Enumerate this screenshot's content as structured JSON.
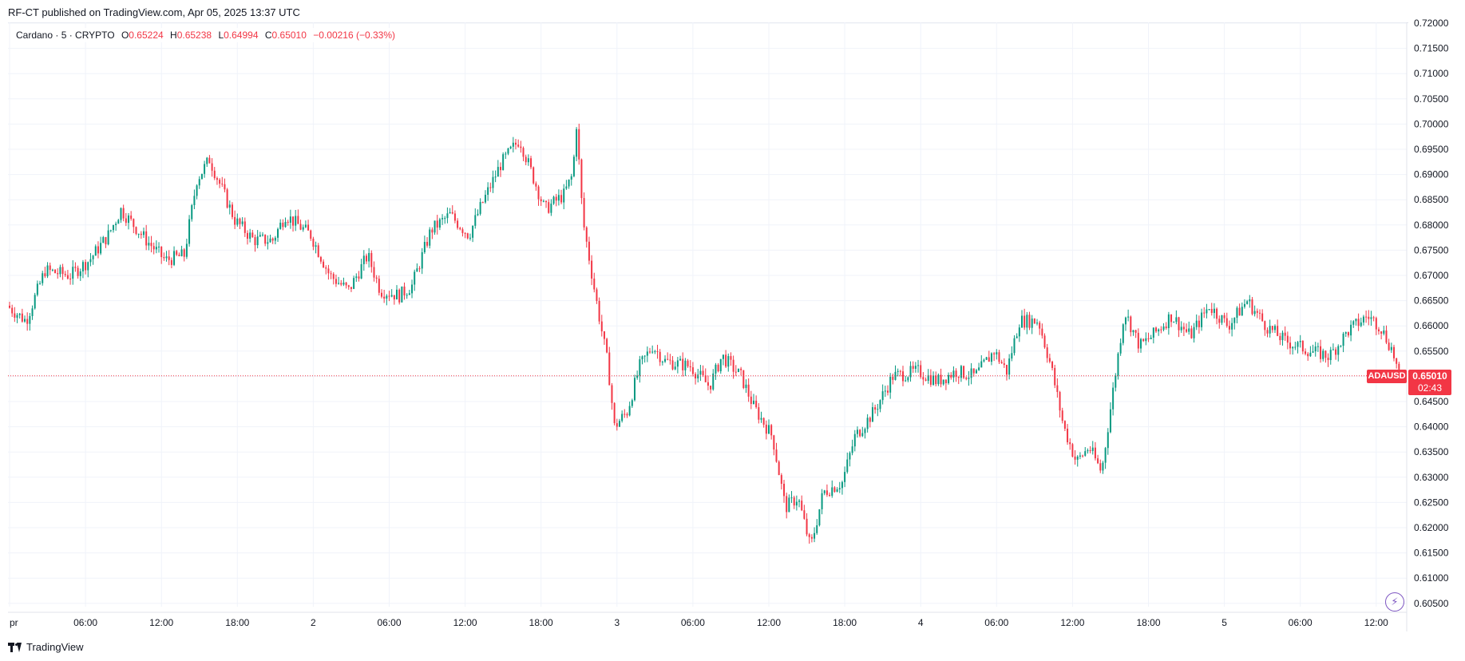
{
  "header": {
    "publish_text": "RF-CT published on TradingView.com, Apr 05, 2025 13:37 UTC"
  },
  "legend": {
    "name": "Cardano · 5 · CRYPTO",
    "o_label": "O",
    "o_value": "0.65224",
    "h_label": "H",
    "h_value": "0.65238",
    "l_label": "L",
    "l_value": "0.64994",
    "c_label": "C",
    "c_value": "0.65010",
    "change": "−0.00216 (−0.33%)"
  },
  "last_price": {
    "symbol": "ADAUSD",
    "value": "0.65010",
    "countdown": "02:43"
  },
  "footer": {
    "brand": "TradingView"
  },
  "colors": {
    "up": "#089981",
    "down": "#f23645",
    "grid": "#f0f3fa",
    "text": "#131722"
  },
  "icons": {
    "brand": "tradingview-logo-icon",
    "alert": "lightning-bolt-icon"
  },
  "chart_data": {
    "type": "candlestick",
    "symbol": "ADAUSD",
    "interval": "5",
    "ylim": [
      0.6,
      0.72
    ],
    "y_ticks": [
      "0.72000",
      "0.71500",
      "0.71000",
      "0.70500",
      "0.70000",
      "0.69500",
      "0.69000",
      "0.68500",
      "0.68000",
      "0.67500",
      "0.67000",
      "0.66500",
      "0.66000",
      "0.65500",
      "0.65000",
      "0.64500",
      "0.64000",
      "0.63500",
      "0.63000",
      "0.62500",
      "0.62000",
      "0.61500",
      "0.61000",
      "0.60500"
    ],
    "y_tick_values": [
      0.72,
      0.715,
      0.71,
      0.705,
      0.7,
      0.695,
      0.69,
      0.685,
      0.68,
      0.675,
      0.67,
      0.665,
      0.66,
      0.655,
      0.65,
      0.645,
      0.64,
      0.635,
      0.63,
      0.625,
      0.62,
      0.615,
      0.61,
      0.605
    ],
    "x_ticks": [
      {
        "label": "pr",
        "hour": 0
      },
      {
        "label": "06:00",
        "hour": 6
      },
      {
        "label": "12:00",
        "hour": 12
      },
      {
        "label": "18:00",
        "hour": 18
      },
      {
        "label": "2",
        "hour": 24
      },
      {
        "label": "06:00",
        "hour": 30
      },
      {
        "label": "12:00",
        "hour": 36
      },
      {
        "label": "18:00",
        "hour": 42
      },
      {
        "label": "3",
        "hour": 48
      },
      {
        "label": "06:00",
        "hour": 54
      },
      {
        "label": "12:00",
        "hour": 60
      },
      {
        "label": "18:00",
        "hour": 66
      },
      {
        "label": "4",
        "hour": 72
      },
      {
        "label": "06:00",
        "hour": 78
      },
      {
        "label": "12:00",
        "hour": 84
      },
      {
        "label": "18:00",
        "hour": 90
      },
      {
        "label": "5",
        "hour": 96
      },
      {
        "label": "06:00",
        "hour": 102
      },
      {
        "label": "12:00",
        "hour": 108
      }
    ],
    "x_range_hours": [
      0,
      110
    ],
    "price_path": [
      [
        0,
        0.664
      ],
      [
        1.5,
        0.661
      ],
      [
        3,
        0.671
      ],
      [
        5,
        0.67
      ],
      [
        6.5,
        0.673
      ],
      [
        8,
        0.678
      ],
      [
        9,
        0.683
      ],
      [
        11,
        0.677
      ],
      [
        12.5,
        0.673
      ],
      [
        14,
        0.674
      ],
      [
        15,
        0.689
      ],
      [
        16,
        0.693
      ],
      [
        18,
        0.681
      ],
      [
        19.5,
        0.677
      ],
      [
        21,
        0.677
      ],
      [
        22,
        0.682
      ],
      [
        24,
        0.678
      ],
      [
        25.5,
        0.67
      ],
      [
        27,
        0.667
      ],
      [
        28.5,
        0.674
      ],
      [
        29.5,
        0.667
      ],
      [
        31,
        0.666
      ],
      [
        32,
        0.668
      ],
      [
        33.5,
        0.679
      ],
      [
        35,
        0.682
      ],
      [
        36.5,
        0.678
      ],
      [
        37.5,
        0.684
      ],
      [
        39,
        0.692
      ],
      [
        40.5,
        0.697
      ],
      [
        41.5,
        0.69
      ],
      [
        42.5,
        0.683
      ],
      [
        44,
        0.686
      ],
      [
        44.7,
        0.69
      ],
      [
        45,
        0.7
      ],
      [
        45.5,
        0.681
      ],
      [
        46.5,
        0.666
      ],
      [
        47.5,
        0.652
      ],
      [
        48,
        0.64
      ],
      [
        49,
        0.643
      ],
      [
        50,
        0.652
      ],
      [
        51,
        0.656
      ],
      [
        52,
        0.653
      ],
      [
        54,
        0.652
      ],
      [
        55.5,
        0.648
      ],
      [
        56.5,
        0.654
      ],
      [
        58,
        0.65
      ],
      [
        59,
        0.644
      ],
      [
        60.5,
        0.638
      ],
      [
        61.5,
        0.624
      ],
      [
        62.5,
        0.626
      ],
      [
        63.5,
        0.616
      ],
      [
        64.5,
        0.627
      ],
      [
        66,
        0.629
      ],
      [
        67,
        0.638
      ],
      [
        68.5,
        0.643
      ],
      [
        70,
        0.65
      ],
      [
        72,
        0.651
      ],
      [
        73.5,
        0.649
      ],
      [
        75,
        0.651
      ],
      [
        76.5,
        0.65
      ],
      [
        78,
        0.655
      ],
      [
        79,
        0.651
      ],
      [
        80,
        0.661
      ],
      [
        81.5,
        0.661
      ],
      [
        82.5,
        0.652
      ],
      [
        83.5,
        0.64
      ],
      [
        84.5,
        0.633
      ],
      [
        85.5,
        0.636
      ],
      [
        86.5,
        0.631
      ],
      [
        87.5,
        0.649
      ],
      [
        88.3,
        0.663
      ],
      [
        89.5,
        0.656
      ],
      [
        90.5,
        0.658
      ],
      [
        92,
        0.662
      ],
      [
        93.5,
        0.658
      ],
      [
        95,
        0.664
      ],
      [
        96.5,
        0.66
      ],
      [
        98,
        0.665
      ],
      [
        99.5,
        0.66
      ],
      [
        101,
        0.657
      ],
      [
        103,
        0.655
      ],
      [
        104.5,
        0.654
      ],
      [
        106,
        0.659
      ],
      [
        107.5,
        0.662
      ],
      [
        108.5,
        0.66
      ],
      [
        109.5,
        0.655
      ],
      [
        110,
        0.65
      ]
    ]
  }
}
